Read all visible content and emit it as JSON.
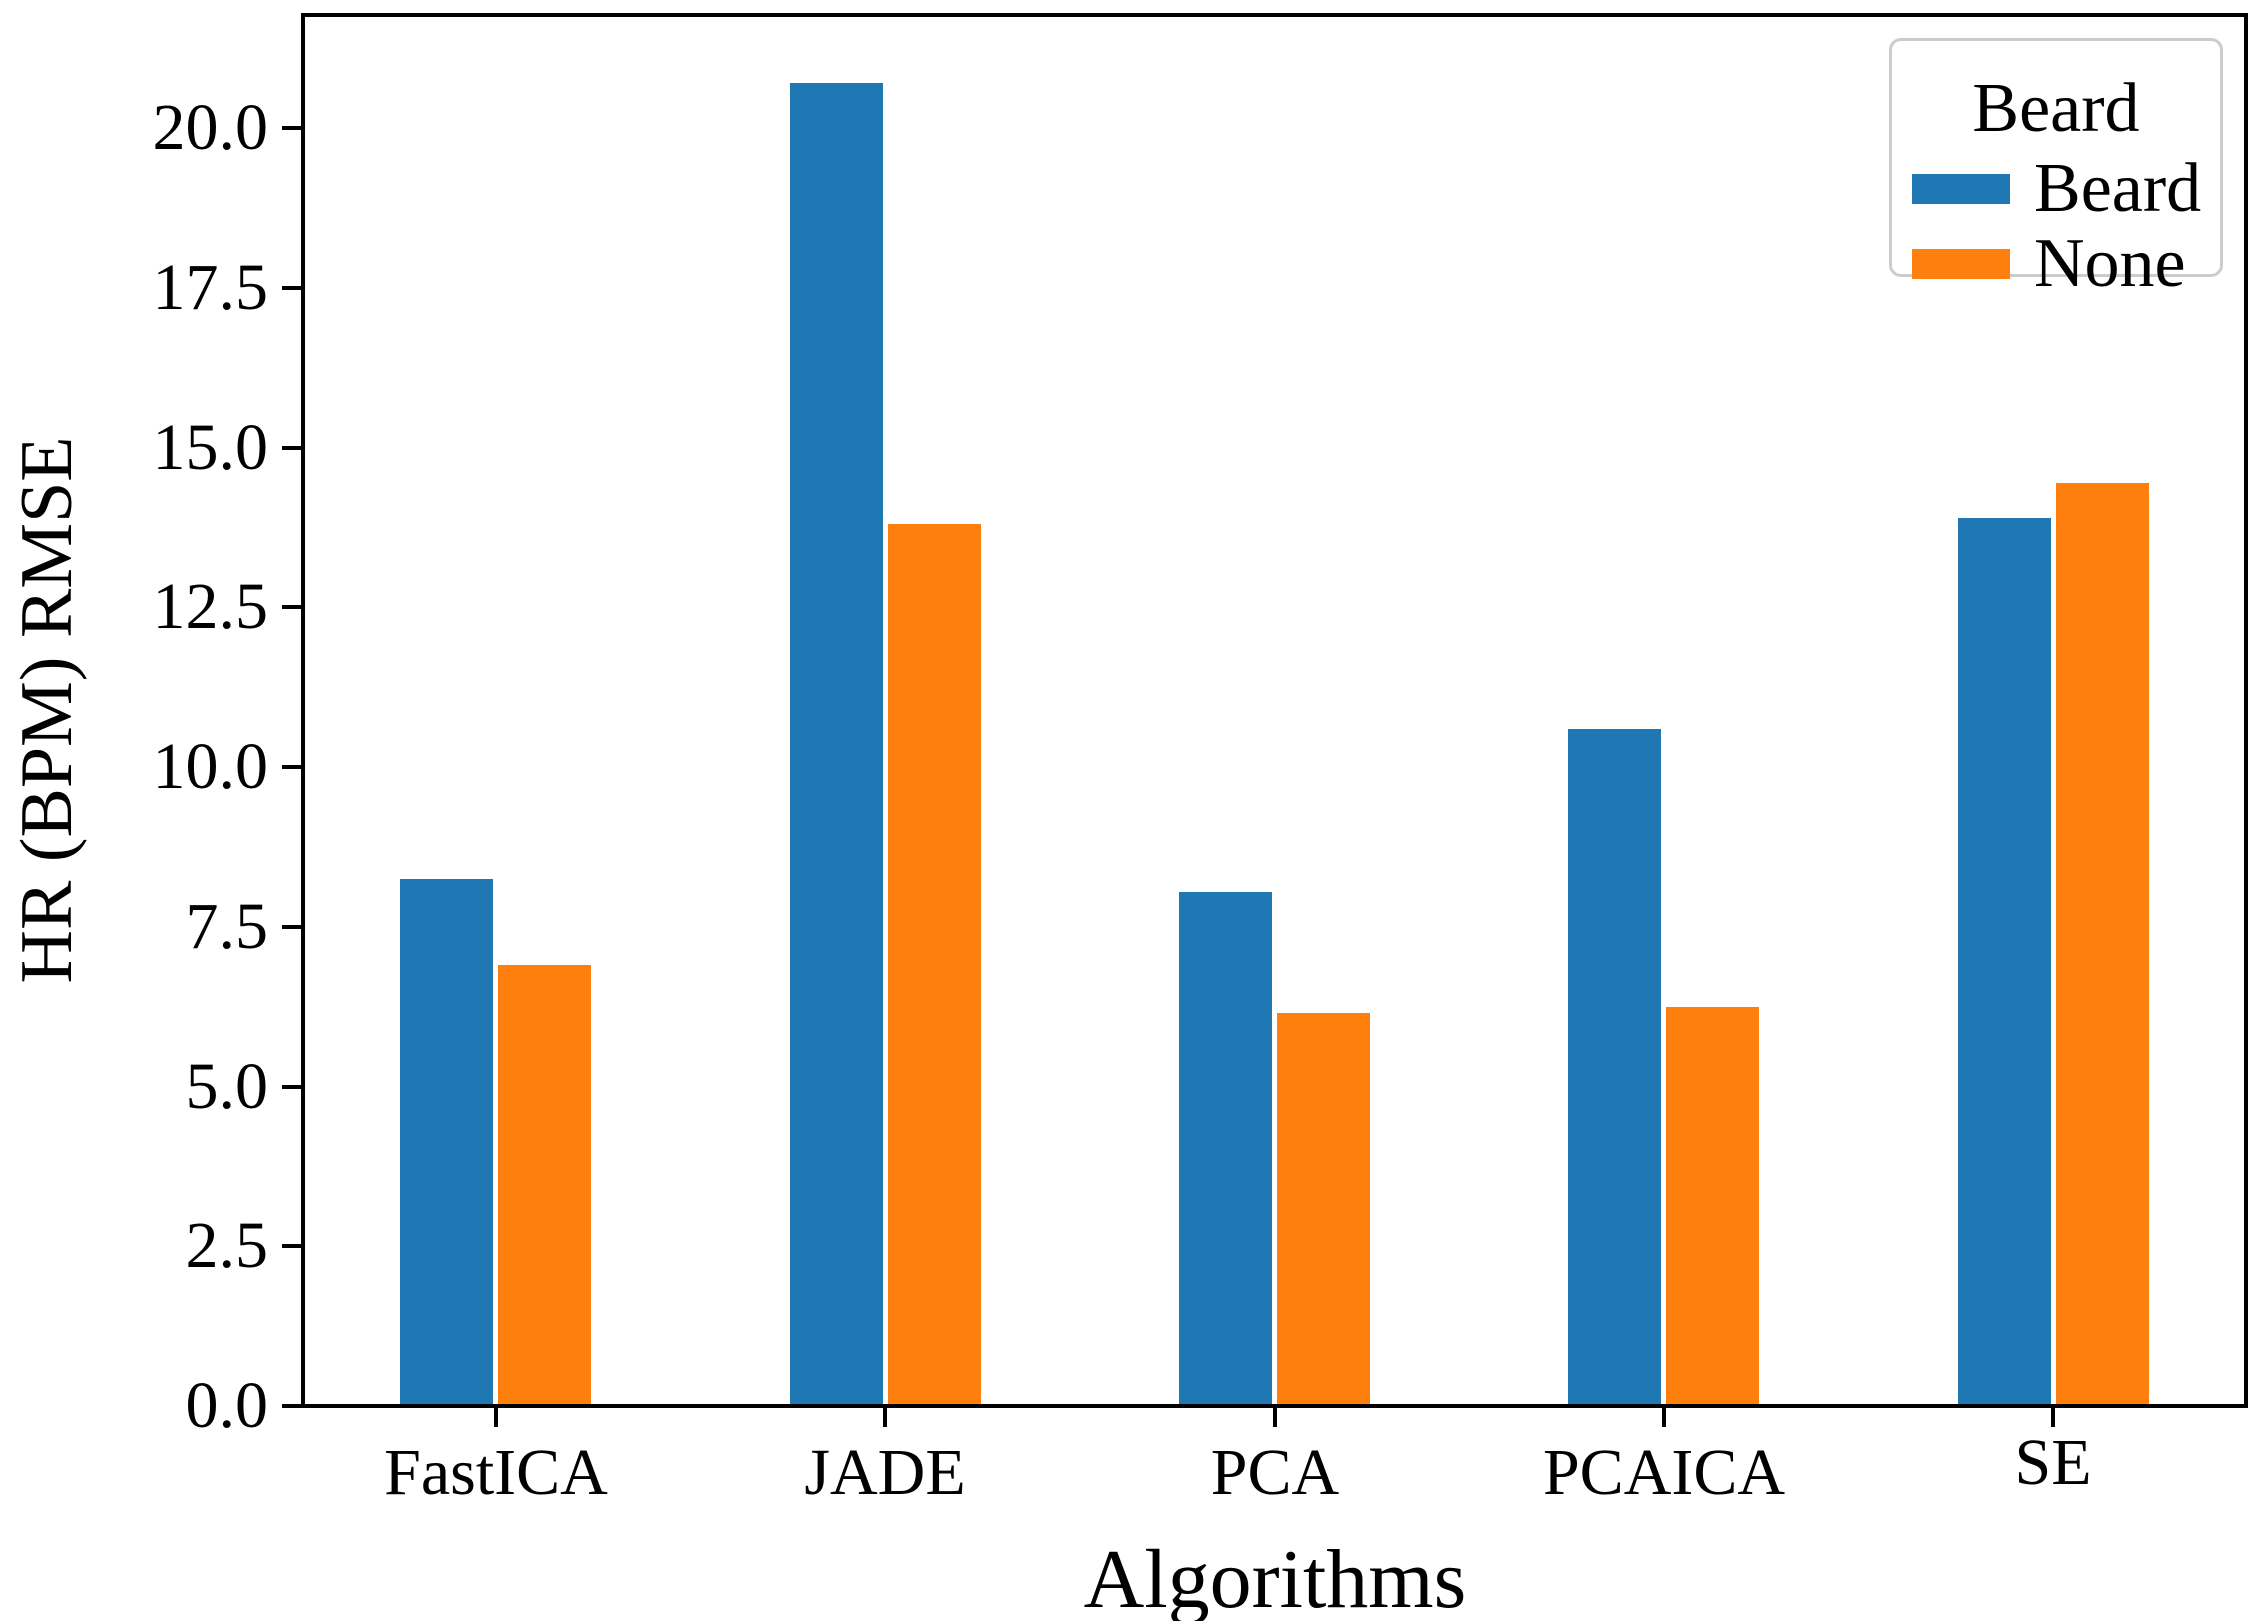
{
  "chart_data": {
    "type": "bar",
    "title": "",
    "xlabel": "Algorithms",
    "ylabel": "HR (BPM) RMSE",
    "categories": [
      "FastICA",
      "JADE",
      "PCA",
      "PCAICA",
      "SE"
    ],
    "series": [
      {
        "name": "Beard",
        "color": "#1f77b4",
        "values": [
          8.25,
          20.7,
          8.05,
          10.6,
          13.9
        ]
      },
      {
        "name": "None",
        "color": "#ff7f0e",
        "values": [
          6.9,
          13.8,
          6.15,
          6.25,
          14.45
        ]
      }
    ],
    "ylim": [
      0,
      21.8
    ],
    "yticks": [
      0,
      2.5,
      5,
      7.5,
      10,
      12.5,
      15,
      17.5,
      20
    ],
    "ytick_labels": [
      "0.0",
      "2.5",
      "5.0",
      "7.5",
      "10.0",
      "12.5",
      "15.0",
      "17.5",
      "20.0"
    ],
    "grid": false,
    "legend": {
      "title": "Beard",
      "position": "upper right",
      "entries": [
        {
          "label": "Beard",
          "color": "#1f77b4"
        },
        {
          "label": "None",
          "color": "#ff7f0e"
        }
      ]
    }
  },
  "colors": {
    "background": "#ffffff",
    "spine": "#000000",
    "text": "#000000",
    "legend_border": "#cccccc"
  }
}
